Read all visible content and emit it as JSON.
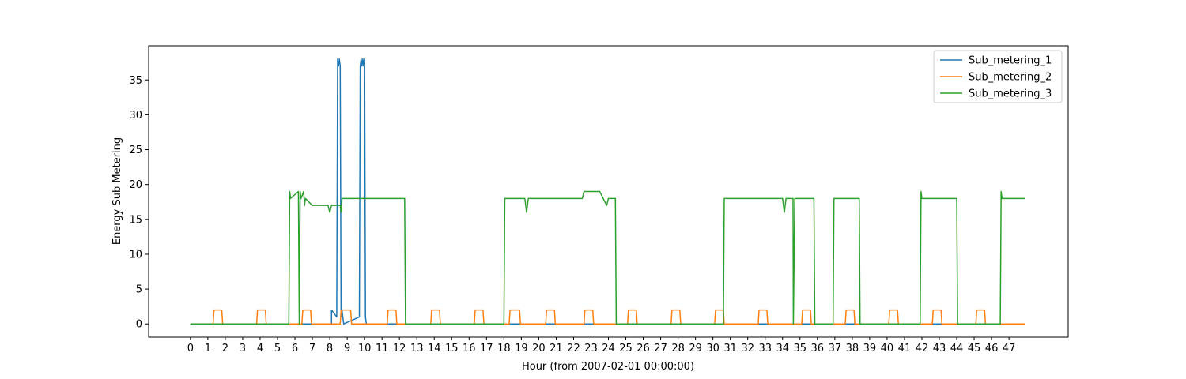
{
  "chart_data": {
    "type": "line",
    "title": "",
    "xlabel": "Hour (from 2007-02-01 00:00:00)",
    "ylabel": "Energy Sub Metering",
    "xlim": [
      -2.4,
      50.4
    ],
    "ylim": [
      -1.9,
      39.9
    ],
    "x_ticks": [
      0,
      1,
      2,
      3,
      4,
      5,
      6,
      7,
      8,
      9,
      10,
      11,
      12,
      13,
      14,
      15,
      16,
      17,
      18,
      19,
      20,
      21,
      22,
      23,
      24,
      25,
      26,
      27,
      28,
      29,
      30,
      31,
      32,
      33,
      34,
      35,
      36,
      37,
      38,
      39,
      40,
      41,
      42,
      43,
      44,
      45,
      46,
      47
    ],
    "y_ticks": [
      0,
      5,
      10,
      15,
      20,
      25,
      30,
      35
    ],
    "grid": false,
    "legend_position": "top-right",
    "series": [
      {
        "name": "Sub_metering_1",
        "color": "#1f77b4",
        "x": [
          0,
          8.1,
          8.1,
          8.4,
          8.45,
          8.5,
          8.55,
          8.6,
          8.65,
          8.7,
          8.75,
          8.8,
          9.7,
          9.75,
          9.8,
          9.85,
          9.9,
          9.95,
          10.0,
          10.05,
          10.1,
          10.15,
          47.9
        ],
        "y": [
          0,
          0,
          2,
          1,
          38,
          37,
          38,
          37,
          1,
          2,
          1,
          0,
          1,
          37,
          38,
          37,
          38,
          37,
          38,
          1,
          0,
          0,
          0
        ]
      },
      {
        "name": "Sub_metering_2",
        "color": "#ff7f0e",
        "x": [
          0,
          1.3,
          1.35,
          1.8,
          1.85,
          3.8,
          3.85,
          4.3,
          4.35,
          6.4,
          6.45,
          6.9,
          6.95,
          8.6,
          8.65,
          9.2,
          9.25,
          11.3,
          11.35,
          11.8,
          11.85,
          13.8,
          13.85,
          14.3,
          14.35,
          16.3,
          16.35,
          16.8,
          16.85,
          18.3,
          18.35,
          18.9,
          18.95,
          20.4,
          20.45,
          20.9,
          20.95,
          22.6,
          22.65,
          23.1,
          23.15,
          25.1,
          25.15,
          25.6,
          25.65,
          27.6,
          27.65,
          28.1,
          28.15,
          30.1,
          30.15,
          30.6,
          30.65,
          32.6,
          32.65,
          33.1,
          33.15,
          35.1,
          35.15,
          35.6,
          35.65,
          37.6,
          37.65,
          38.1,
          38.15,
          40.1,
          40.15,
          40.6,
          40.65,
          42.6,
          42.65,
          43.1,
          43.15,
          45.1,
          45.15,
          45.6,
          45.65,
          47.9
        ],
        "y": [
          0,
          0,
          2,
          2,
          0,
          0,
          2,
          2,
          0,
          0,
          2,
          2,
          0,
          0,
          2,
          2,
          0,
          0,
          2,
          2,
          0,
          0,
          2,
          2,
          0,
          0,
          2,
          2,
          0,
          0,
          2,
          2,
          0,
          0,
          2,
          2,
          0,
          0,
          2,
          2,
          0,
          0,
          2,
          2,
          0,
          0,
          2,
          2,
          0,
          0,
          2,
          2,
          0,
          0,
          2,
          2,
          0,
          0,
          2,
          2,
          0,
          0,
          2,
          2,
          0,
          0,
          2,
          2,
          0,
          0,
          2,
          2,
          0,
          0,
          2,
          2,
          0,
          0
        ]
      },
      {
        "name": "Sub_metering_3",
        "color": "#2ca02c",
        "x": [
          0,
          5.65,
          5.7,
          5.75,
          6.2,
          6.25,
          6.3,
          6.35,
          6.5,
          6.55,
          6.6,
          7.0,
          7.9,
          8.0,
          8.1,
          8.6,
          8.65,
          8.7,
          9.5,
          10.0,
          12.3,
          12.35,
          18.0,
          18.05,
          19.2,
          19.3,
          19.4,
          22.5,
          22.6,
          23.5,
          23.9,
          24.0,
          24.4,
          24.45,
          30.6,
          30.65,
          33.5,
          34.0,
          34.1,
          34.2,
          34.6,
          34.62,
          34.7,
          34.75,
          35.8,
          35.85,
          36.9,
          36.95,
          38.4,
          38.45,
          41.9,
          41.95,
          42.0,
          43.8,
          44.0,
          44.05,
          46.5,
          46.55,
          46.6,
          47.9
        ],
        "y": [
          0,
          0,
          19,
          18,
          19,
          0,
          19,
          18,
          19,
          17,
          18,
          17,
          17,
          16,
          17,
          17,
          16,
          18,
          18,
          18,
          18,
          0,
          0,
          18,
          18,
          16,
          18,
          18,
          19,
          19,
          17,
          18,
          18,
          0,
          0,
          18,
          18,
          18,
          16,
          18,
          18,
          0,
          18,
          18,
          18,
          0,
          0,
          18,
          18,
          0,
          0,
          19,
          18,
          18,
          18,
          0,
          0,
          19,
          18,
          18
        ]
      }
    ]
  }
}
